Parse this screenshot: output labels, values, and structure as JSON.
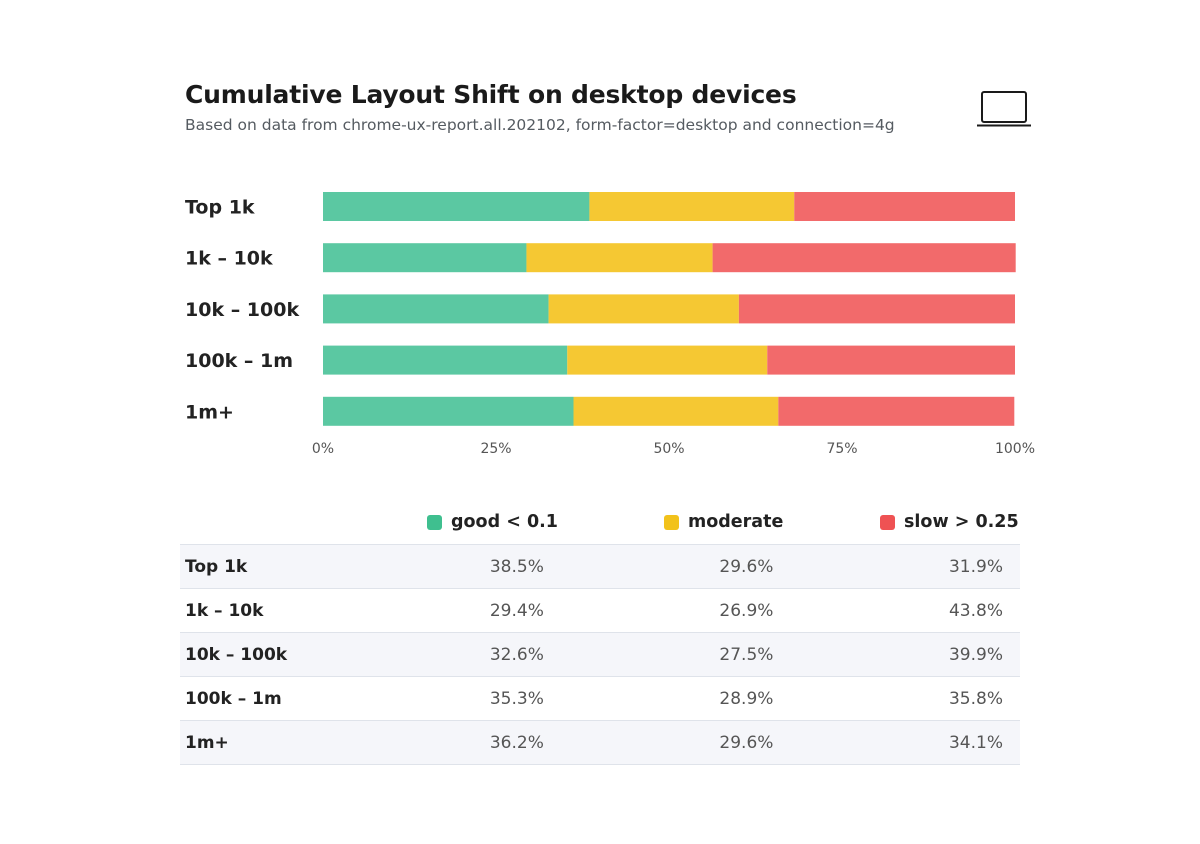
{
  "header": {
    "title": "Cumulative Layout Shift on desktop devices",
    "subtitle": "Based on data from chrome-ux-report.all.202102, form-factor=desktop and connection=4g",
    "icon": "laptop-icon"
  },
  "colors": {
    "good": "#5bc8a2",
    "moderate": "#f5c833",
    "slow": "#f26a6b"
  },
  "legend": [
    {
      "key": "good",
      "label": "good < 0.1",
      "color": "#3fbf8f"
    },
    {
      "key": "moderate",
      "label": "moderate",
      "color": "#f2c21b"
    },
    {
      "key": "slow",
      "label": "slow > 0.25",
      "color": "#ef5253"
    }
  ],
  "chart_data": {
    "type": "bar",
    "orientation": "horizontal",
    "stacked": true,
    "title": "Cumulative Layout Shift on desktop devices",
    "subtitle": "Based on data from chrome-ux-report.all.202102, form-factor=desktop and connection=4g",
    "categories": [
      "Top 1k",
      "1k – 10k",
      "10k – 100k",
      "100k – 1m",
      "1m+"
    ],
    "series": [
      {
        "name": "good < 0.1",
        "key": "good",
        "values": [
          38.5,
          29.4,
          32.6,
          35.3,
          36.2
        ]
      },
      {
        "name": "moderate",
        "key": "moderate",
        "values": [
          29.6,
          26.9,
          27.5,
          28.9,
          29.6
        ]
      },
      {
        "name": "slow > 0.25",
        "key": "slow",
        "values": [
          31.9,
          43.8,
          39.9,
          35.8,
          34.1
        ]
      }
    ],
    "xlim": [
      0,
      100
    ],
    "xticks": [
      "0%",
      "25%",
      "50%",
      "75%",
      "100%"
    ],
    "xlabel": "",
    "ylabel": "",
    "grid": false,
    "legend_position": "bottom"
  },
  "table": {
    "rows": [
      {
        "label": "Top 1k",
        "good": "38.5%",
        "moderate": "29.6%",
        "slow": "31.9%"
      },
      {
        "label": "1k – 10k",
        "good": "29.4%",
        "moderate": "26.9%",
        "slow": "43.8%"
      },
      {
        "label": "10k – 100k",
        "good": "32.6%",
        "moderate": "27.5%",
        "slow": "39.9%"
      },
      {
        "label": "100k – 1m",
        "good": "35.3%",
        "moderate": "28.9%",
        "slow": "35.8%"
      },
      {
        "label": "1m+",
        "good": "36.2%",
        "moderate": "29.6%",
        "slow": "34.1%"
      }
    ]
  }
}
